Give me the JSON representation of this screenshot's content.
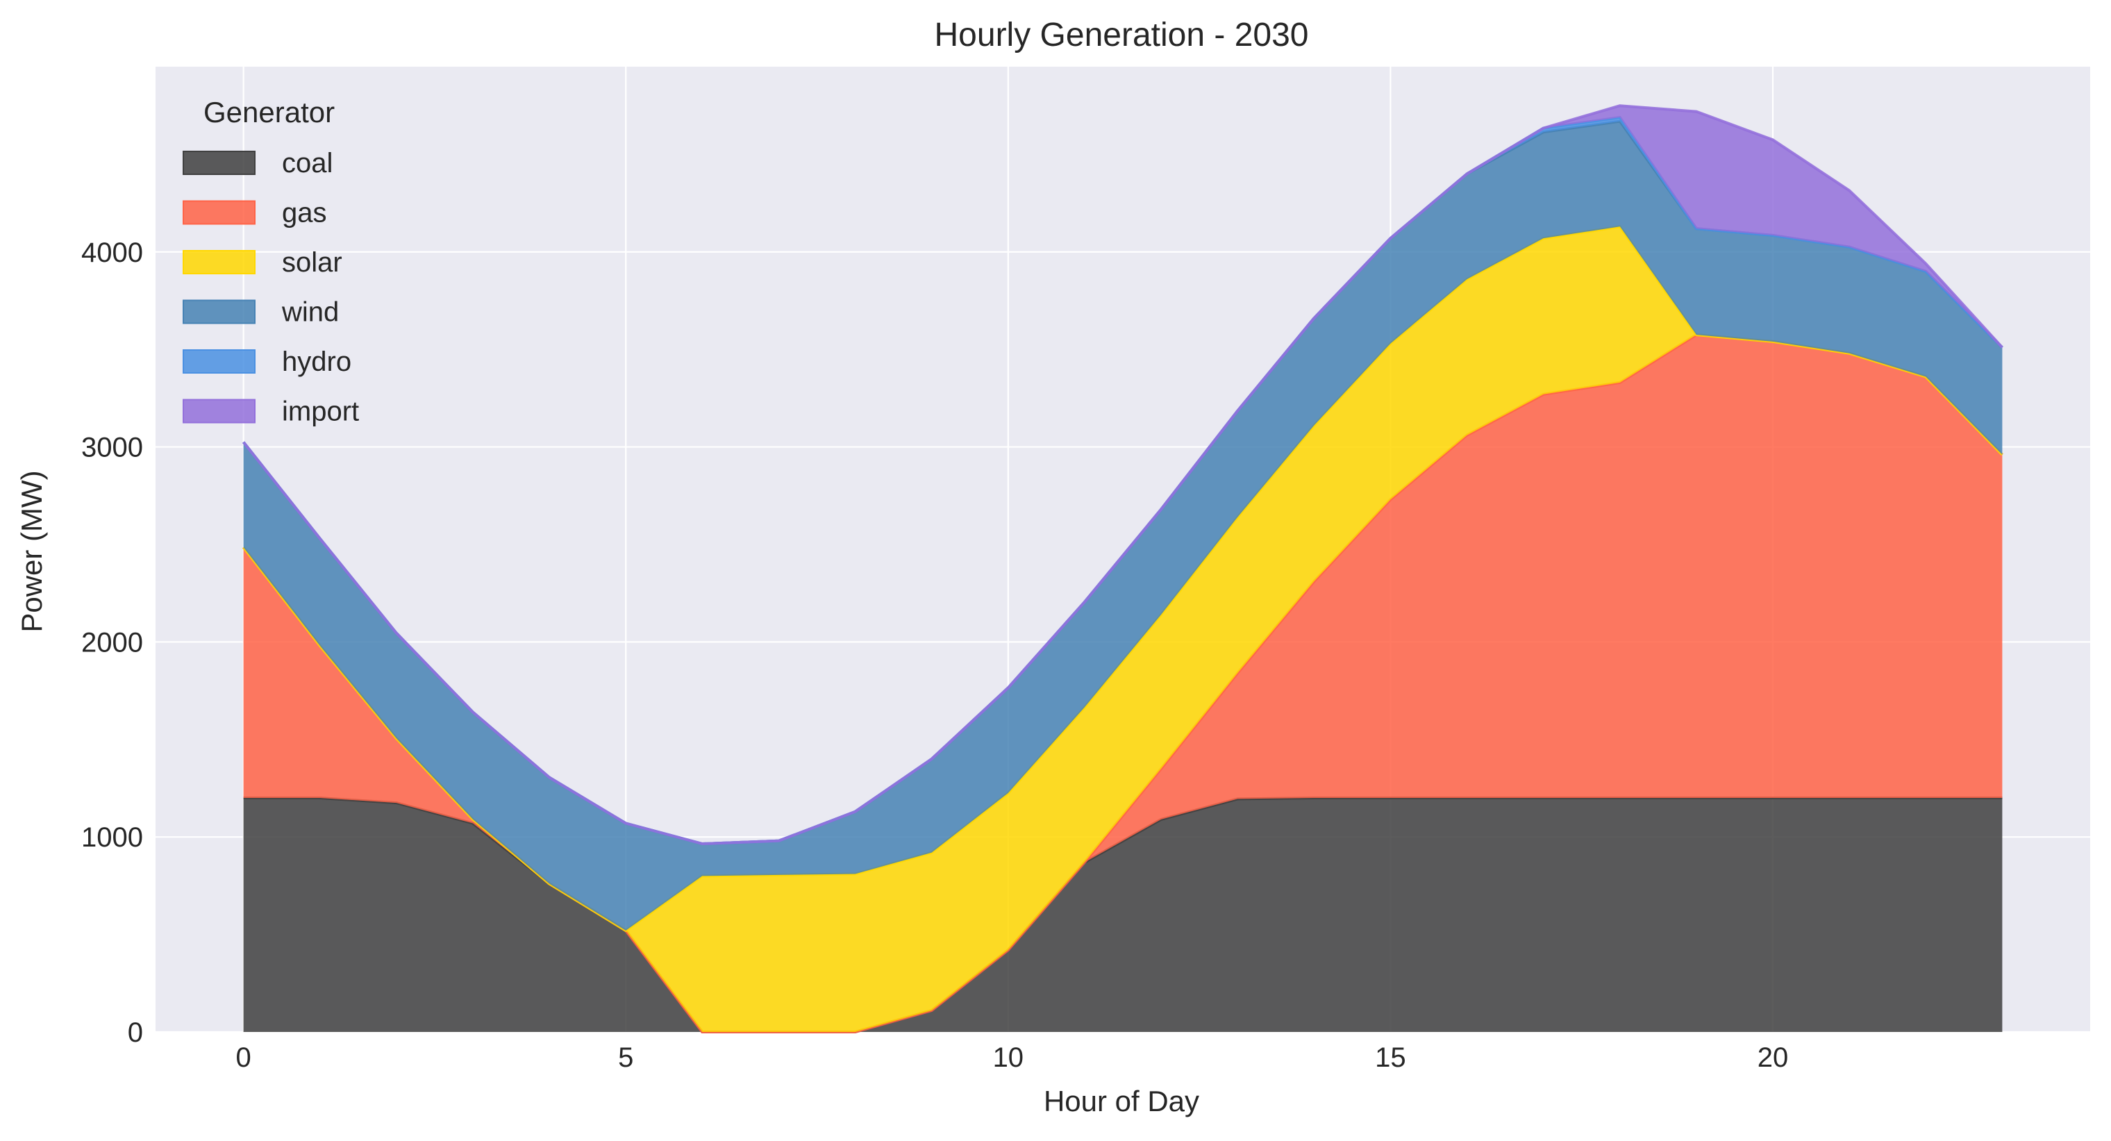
{
  "chart_data": {
    "type": "area",
    "stacked": true,
    "title": "Hourly Generation - 2030",
    "xlabel": "Hour of Day",
    "ylabel": "Power (MW)",
    "xlim": [
      -1.15,
      24.15
    ],
    "ylim": [
      0,
      4950
    ],
    "xticks": [
      0,
      5,
      10,
      15,
      20
    ],
    "yticks": [
      0,
      1000,
      2000,
      3000,
      4000
    ],
    "grid": true,
    "legend": {
      "title": "Generator",
      "placement": "top-left"
    },
    "x": [
      0,
      1,
      2,
      3,
      4,
      5,
      6,
      7,
      8,
      9,
      10,
      11,
      12,
      13,
      14,
      15,
      16,
      17,
      18,
      19,
      20,
      21,
      22,
      23
    ],
    "series": [
      {
        "name": "coal",
        "color": "#404040",
        "values": [
          1200,
          1200,
          1175,
          1070,
          760,
          520,
          0,
          0,
          0,
          110,
          420,
          870,
          1090,
          1195,
          1200,
          1200,
          1200,
          1200,
          1200,
          1200,
          1200,
          1200,
          1200,
          1200
        ]
      },
      {
        "name": "gas",
        "color": "#FF6347",
        "values": [
          1285,
          780,
          330,
          20,
          0,
          0,
          0,
          0,
          0,
          0,
          0,
          0,
          260,
          645,
          1110,
          1530,
          1860,
          2070,
          2130,
          2375,
          2340,
          2280,
          2160,
          1760
        ]
      },
      {
        "name": "solar",
        "color": "#FFD700",
        "values": [
          0,
          0,
          0,
          0,
          0,
          0,
          800,
          805,
          810,
          810,
          805,
          795,
          790,
          800,
          800,
          800,
          800,
          800,
          800,
          0,
          0,
          0,
          0,
          0
        ]
      },
      {
        "name": "wind",
        "color": "#4682B4",
        "values": [
          540,
          550,
          540,
          550,
          545,
          550,
          165,
          175,
          320,
          480,
          540,
          540,
          540,
          545,
          550,
          540,
          540,
          545,
          540,
          545,
          545,
          545,
          540,
          550
        ]
      },
      {
        "name": "hydro",
        "color": "#4A90E2",
        "values": [
          0,
          0,
          0,
          0,
          0,
          0,
          0,
          0,
          0,
          0,
          0,
          0,
          0,
          0,
          0,
          0,
          0,
          20,
          20,
          0,
          0,
          0,
          0,
          0
        ]
      },
      {
        "name": "import",
        "color": "#9370DB",
        "values": [
          0,
          0,
          0,
          0,
          0,
          0,
          0,
          0,
          0,
          0,
          0,
          0,
          0,
          0,
          0,
          0,
          0,
          0,
          60,
          600,
          490,
          290,
          40,
          0
        ]
      }
    ]
  }
}
